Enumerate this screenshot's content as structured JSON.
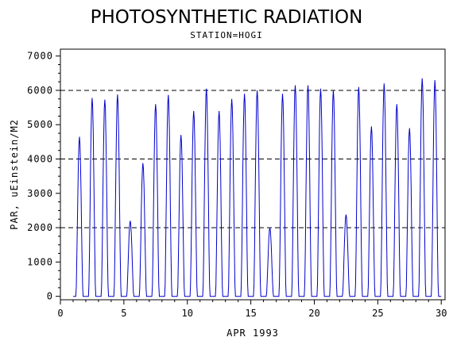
{
  "chart_data": {
    "type": "line",
    "title": "PHOTOSYNTHETIC RADIATION",
    "subtitle": "STATION=HOGI",
    "xlabel": "APR 1993",
    "ylabel": "PAR, uEinstein/M2",
    "xlim": [
      0,
      30.3
    ],
    "ylim": [
      -100,
      7200
    ],
    "xticks": [
      0,
      5,
      10,
      15,
      20,
      25,
      30
    ],
    "yticks": [
      0,
      1000,
      2000,
      3000,
      4000,
      5000,
      6000,
      7000
    ],
    "reference_lines_y": [
      2000,
      4000,
      6000
    ],
    "reference_line_style": "dashed",
    "grid": false,
    "legend": "none",
    "line_color": "#0000cc",
    "series": [
      {
        "daily_peak_par": [
          4650,
          5780,
          5730,
          5880,
          2200,
          3880,
          5600,
          5870,
          4700,
          5400,
          6050,
          5400,
          5750,
          5900,
          6000,
          2000,
          5900,
          6150,
          6150,
          6050,
          6000,
          2380,
          6100,
          4950,
          6200,
          5600,
          4900,
          6350,
          6300
        ]
      }
    ]
  }
}
